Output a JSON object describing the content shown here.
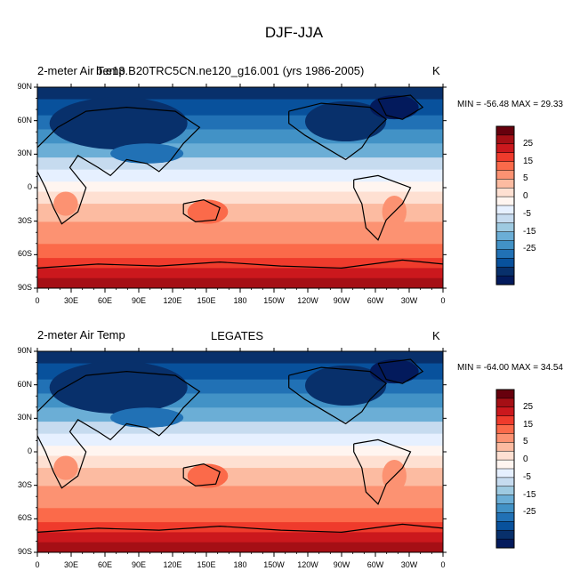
{
  "figure": {
    "title": "DJF-JJA"
  },
  "panels": [
    {
      "left_label": "2-meter Air Temp",
      "center_label": "b.e13.B20TRC5CN.ne120_g16.001 (yrs 1986-2005)",
      "units": "K",
      "stats": "MIN = -56.48 MAX =  29.33"
    },
    {
      "left_label": "2-meter Air Temp",
      "center_label": "LEGATES",
      "units": "K",
      "stats": "MIN = -64.00 MAX =  34.54"
    }
  ],
  "lat_labels": [
    "90N",
    "60N",
    "30N",
    "0",
    "30S",
    "60S",
    "90S"
  ],
  "lon_labels": [
    "0",
    "30E",
    "60E",
    "90E",
    "120E",
    "150E",
    "180",
    "150W",
    "120W",
    "90W",
    "60W",
    "30W",
    "0"
  ],
  "colorbar": {
    "labels": [
      "25",
      "15",
      "5",
      "0",
      "-5",
      "-15",
      "-25"
    ],
    "colors": [
      "#67000d",
      "#a50f15",
      "#cb181d",
      "#ef3b2c",
      "#fb6a4a",
      "#fc9272",
      "#fcbba1",
      "#fee0d2",
      "#fff5f0",
      "#e6f0ff",
      "#c6dbef",
      "#9ecae1",
      "#6baed6",
      "#4292c6",
      "#2171b5",
      "#08519c",
      "#08306b",
      "#031a5c"
    ]
  }
}
